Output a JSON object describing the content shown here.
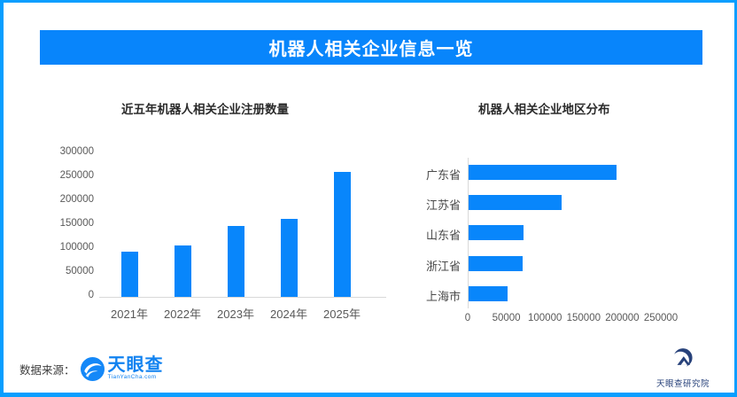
{
  "header": {
    "title": "机器人相关企业信息一览"
  },
  "colors": {
    "banner": "#0885fb",
    "frame_border": "#099eff",
    "bar": "#0886fb",
    "axis_line": "#d9d9d9",
    "tianyancha_blue": "#1182f0",
    "research_navy": "#27417a"
  },
  "chart_data": [
    {
      "type": "bar",
      "orientation": "vertical",
      "title": "近五年机器人相关企业注册数量",
      "categories": [
        "2021年",
        "2022年",
        "2023年",
        "2024年",
        "2025年"
      ],
      "values": [
        95000,
        107000,
        148000,
        163000,
        261000
      ],
      "yticks": [
        0,
        50000,
        100000,
        150000,
        200000,
        250000,
        300000
      ],
      "ylim": [
        0,
        300000
      ],
      "xlabel": "",
      "ylabel": "",
      "grid": false,
      "legend": "none"
    },
    {
      "type": "bar",
      "orientation": "horizontal",
      "title": "机器人相关企业地区分布",
      "categories": [
        "广东省",
        "江苏省",
        "山东省",
        "浙江省",
        "上海市"
      ],
      "values": [
        191000,
        120000,
        71000,
        70000,
        50000
      ],
      "xticks": [
        0,
        50000,
        100000,
        150000,
        200000,
        250000
      ],
      "xlim": [
        0,
        250000
      ],
      "xlabel": "",
      "ylabel": "",
      "grid": false,
      "legend": "none"
    }
  ],
  "footer": {
    "source_label": "数据来源：",
    "tianyancha": {
      "name": "天眼查",
      "domain": "TianYanCha.com"
    },
    "research": {
      "name": "天眼查研究院"
    }
  }
}
